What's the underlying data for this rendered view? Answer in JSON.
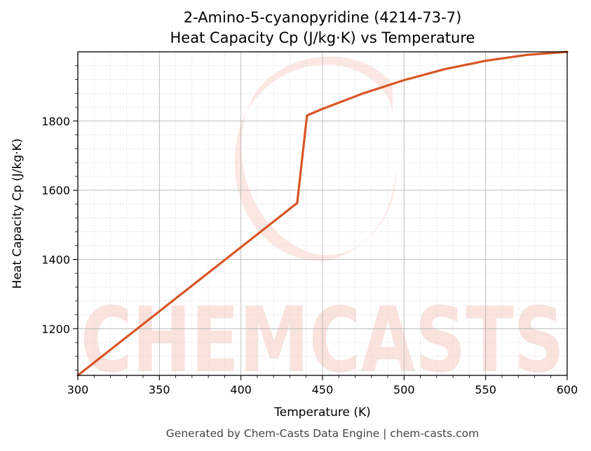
{
  "chart_data": {
    "type": "line",
    "title_line1": "2-Amino-5-cyanopyridine (4214-73-7)",
    "title_line2": "Heat Capacity Cp (J/kg·K) vs Temperature",
    "xlabel": "Temperature (K)",
    "ylabel": "Heat Capacity Cp (J/kg·K)",
    "xlim": [
      300,
      600
    ],
    "ylim": [
      1065,
      2000
    ],
    "xticks": [
      300,
      350,
      400,
      450,
      500,
      550,
      600
    ],
    "yticks": [
      1200,
      1400,
      1600,
      1800
    ],
    "grid": true,
    "series": [
      {
        "color": "#d95525",
        "x": [
          300,
          434.5,
          440.5,
          450,
          475,
          500,
          525,
          550,
          575,
          600
        ],
        "y": [
          1065,
          1563,
          1816,
          1835,
          1880,
          1918,
          1950,
          1974,
          1991,
          2000
        ]
      }
    ]
  },
  "watermark": {
    "text": "CHEMCASTS",
    "color": "#f8d6cf"
  },
  "footer": "Generated by Chem-Casts Data Engine | chem-casts.com"
}
